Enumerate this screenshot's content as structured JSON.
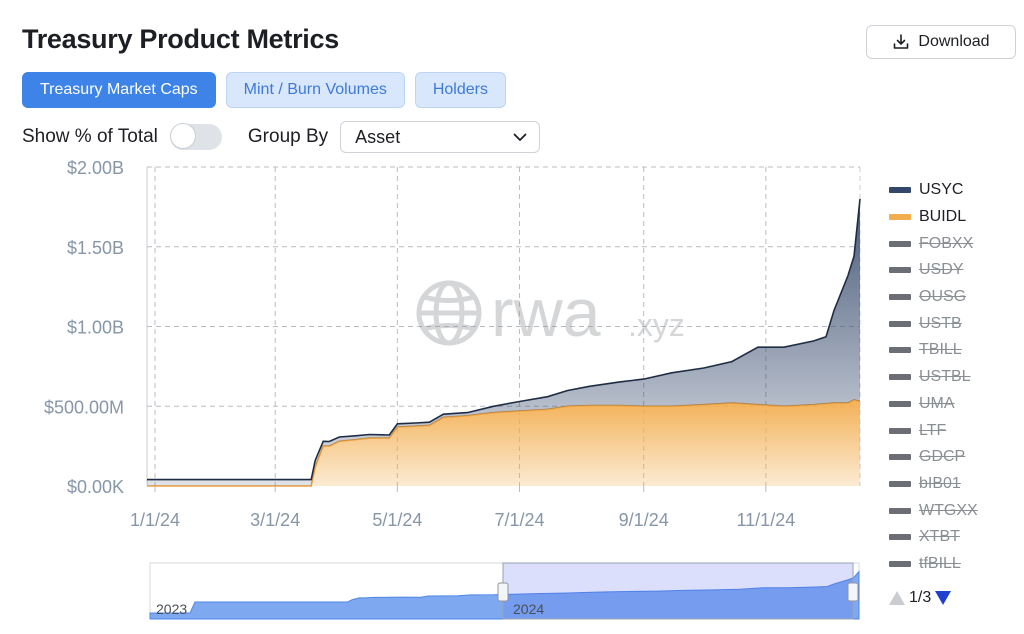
{
  "page": {
    "title": "Treasury Product Metrics",
    "download_label": "Download"
  },
  "tabs": [
    {
      "label": "Treasury Market Caps",
      "active": true
    },
    {
      "label": "Mint / Burn Volumes",
      "active": false
    },
    {
      "label": "Holders",
      "active": false
    }
  ],
  "controls": {
    "show_pct_label": "Show % of Total",
    "show_pct_enabled": false,
    "group_by_label": "Group By",
    "group_by_value": "Asset"
  },
  "watermark": {
    "main": "rwa",
    "suffix": ".xyz"
  },
  "legend": {
    "items": [
      {
        "label": "USYC",
        "color": "#33476a",
        "hidden": false
      },
      {
        "label": "BUIDL",
        "color": "#f2ad4e",
        "hidden": false
      },
      {
        "label": "FOBXX",
        "hidden": true
      },
      {
        "label": "USDY",
        "hidden": true
      },
      {
        "label": "OUSG",
        "hidden": true
      },
      {
        "label": "USTB",
        "hidden": true
      },
      {
        "label": "TBILL",
        "hidden": true
      },
      {
        "label": "USTBL",
        "hidden": true
      },
      {
        "label": "UMA",
        "hidden": true
      },
      {
        "label": "LTF",
        "hidden": true
      },
      {
        "label": "GDCP",
        "hidden": true
      },
      {
        "label": "bIB01",
        "hidden": true
      },
      {
        "label": "WTGXX",
        "hidden": true
      },
      {
        "label": "XTBT",
        "hidden": true
      },
      {
        "label": "tfBILL",
        "hidden": true
      }
    ],
    "page": "1/3"
  },
  "chart_data": {
    "type": "area",
    "stacked": true,
    "x_axis_type": "date",
    "x_range": [
      "2023-12-28",
      "2024-12-18"
    ],
    "ylim": [
      0,
      2000000000
    ],
    "yticks": [
      {
        "value": 0,
        "label": "$0.00K"
      },
      {
        "value": 500000000,
        "label": "$500.00M"
      },
      {
        "value": 1000000000,
        "label": "$1.00B"
      },
      {
        "value": 1500000000,
        "label": "$1.50B"
      },
      {
        "value": 2000000000,
        "label": "$2.00B"
      }
    ],
    "xticks": [
      {
        "date": "2024-01-01",
        "label": "1/1/24"
      },
      {
        "date": "2024-03-01",
        "label": "3/1/24"
      },
      {
        "date": "2024-05-01",
        "label": "5/1/24"
      },
      {
        "date": "2024-07-01",
        "label": "7/1/24"
      },
      {
        "date": "2024-09-01",
        "label": "9/1/24"
      },
      {
        "date": "2024-11-01",
        "label": "11/1/24"
      }
    ],
    "grid": true,
    "legend_position": "right",
    "series": [
      {
        "name": "BUIDL",
        "color": "#f2ad4e",
        "points": [
          [
            "2023-12-28",
            0
          ],
          [
            "2024-03-19",
            0
          ],
          [
            "2024-03-21",
            120000000
          ],
          [
            "2024-03-25",
            250000000
          ],
          [
            "2024-03-28",
            250000000
          ],
          [
            "2024-04-02",
            280000000
          ],
          [
            "2024-04-10",
            290000000
          ],
          [
            "2024-04-17",
            300000000
          ],
          [
            "2024-04-27",
            300000000
          ],
          [
            "2024-05-01",
            370000000
          ],
          [
            "2024-05-10",
            375000000
          ],
          [
            "2024-05-17",
            380000000
          ],
          [
            "2024-05-24",
            430000000
          ],
          [
            "2024-06-05",
            440000000
          ],
          [
            "2024-06-18",
            460000000
          ],
          [
            "2024-07-01",
            470000000
          ],
          [
            "2024-07-15",
            480000000
          ],
          [
            "2024-07-25",
            500000000
          ],
          [
            "2024-08-05",
            505000000
          ],
          [
            "2024-08-20",
            505000000
          ],
          [
            "2024-09-01",
            500000000
          ],
          [
            "2024-09-15",
            500000000
          ],
          [
            "2024-10-01",
            510000000
          ],
          [
            "2024-10-15",
            520000000
          ],
          [
            "2024-10-28",
            510000000
          ],
          [
            "2024-11-10",
            500000000
          ],
          [
            "2024-11-25",
            510000000
          ],
          [
            "2024-12-05",
            520000000
          ],
          [
            "2024-12-12",
            520000000
          ],
          [
            "2024-12-15",
            540000000
          ],
          [
            "2024-12-18",
            530000000
          ]
        ]
      },
      {
        "name": "USYC",
        "color": "#33476a",
        "points": [
          [
            "2023-12-28",
            40000000
          ],
          [
            "2024-03-19",
            40000000
          ],
          [
            "2024-03-21",
            40000000
          ],
          [
            "2024-03-25",
            30000000
          ],
          [
            "2024-04-10",
            25000000
          ],
          [
            "2024-04-27",
            20000000
          ],
          [
            "2024-05-01",
            20000000
          ],
          [
            "2024-05-24",
            20000000
          ],
          [
            "2024-06-05",
            20000000
          ],
          [
            "2024-06-18",
            40000000
          ],
          [
            "2024-07-01",
            60000000
          ],
          [
            "2024-07-15",
            80000000
          ],
          [
            "2024-08-05",
            120000000
          ],
          [
            "2024-09-01",
            170000000
          ],
          [
            "2024-09-15",
            210000000
          ],
          [
            "2024-10-01",
            230000000
          ],
          [
            "2024-10-15",
            260000000
          ],
          [
            "2024-10-28",
            360000000
          ],
          [
            "2024-11-10",
            370000000
          ],
          [
            "2024-11-25",
            400000000
          ],
          [
            "2024-12-01",
            420000000
          ],
          [
            "2024-12-05",
            580000000
          ],
          [
            "2024-12-12",
            800000000
          ],
          [
            "2024-12-15",
            900000000
          ],
          [
            "2024-12-18",
            1270000000
          ]
        ]
      }
    ],
    "navigator": {
      "labels": [
        "2023",
        "2024"
      ]
    }
  }
}
